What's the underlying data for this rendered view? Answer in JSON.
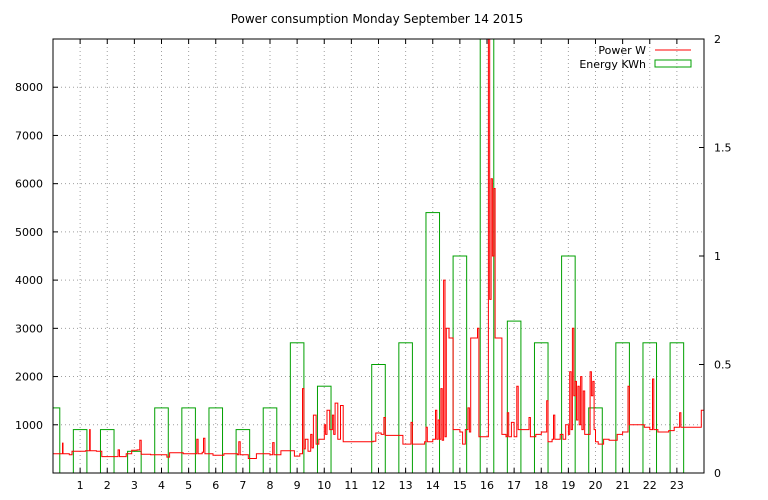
{
  "chart_data": {
    "type": "bar",
    "title": "Power consumption Monday September 14 2015",
    "x_ticks": [
      "1",
      "2",
      "3",
      "4",
      "5",
      "6",
      "7",
      "8",
      "9",
      "10",
      "11",
      "12",
      "13",
      "14",
      "15",
      "16",
      "17",
      "18",
      "19",
      "20",
      "21",
      "22",
      "23"
    ],
    "xlim": [
      0,
      24
    ],
    "y_left": {
      "ticks": [
        "1000",
        "2000",
        "3000",
        "4000",
        "5000",
        "6000",
        "7000",
        "8000"
      ],
      "lim": [
        0,
        9000
      ]
    },
    "y_right": {
      "ticks": [
        "0",
        "0.5",
        "1",
        "1.5",
        "2"
      ],
      "lim": [
        0,
        2
      ]
    },
    "grid": true,
    "legend_position": "top-right",
    "colors": {
      "power": "#ff0000",
      "energy": "#00a000"
    },
    "series": [
      {
        "name": "Power W",
        "axis": "left",
        "style": "line",
        "points": [
          [
            0.0,
            400
          ],
          [
            0.3,
            400
          ],
          [
            0.35,
            620
          ],
          [
            0.37,
            400
          ],
          [
            0.6,
            380
          ],
          [
            0.7,
            450
          ],
          [
            1.2,
            460
          ],
          [
            1.35,
            900
          ],
          [
            1.37,
            460
          ],
          [
            1.6,
            450
          ],
          [
            1.8,
            340
          ],
          [
            2.3,
            340
          ],
          [
            2.4,
            480
          ],
          [
            2.45,
            340
          ],
          [
            2.7,
            400
          ],
          [
            2.9,
            470
          ],
          [
            3.1,
            480
          ],
          [
            3.2,
            680
          ],
          [
            3.25,
            390
          ],
          [
            3.6,
            380
          ],
          [
            4.0,
            380
          ],
          [
            4.2,
            330
          ],
          [
            4.3,
            420
          ],
          [
            4.5,
            420
          ],
          [
            4.8,
            400
          ],
          [
            5.2,
            400
          ],
          [
            5.3,
            700
          ],
          [
            5.35,
            400
          ],
          [
            5.5,
            430
          ],
          [
            5.55,
            720
          ],
          [
            5.6,
            400
          ],
          [
            5.9,
            370
          ],
          [
            6.1,
            370
          ],
          [
            6.3,
            400
          ],
          [
            6.6,
            400
          ],
          [
            6.8,
            380
          ],
          [
            6.85,
            650
          ],
          [
            6.9,
            380
          ],
          [
            7.2,
            300
          ],
          [
            7.5,
            400
          ],
          [
            7.8,
            400
          ],
          [
            8.0,
            380
          ],
          [
            8.1,
            630
          ],
          [
            8.15,
            380
          ],
          [
            8.4,
            460
          ],
          [
            8.8,
            460
          ],
          [
            8.9,
            350
          ],
          [
            9.1,
            400
          ],
          [
            9.2,
            1750
          ],
          [
            9.25,
            500
          ],
          [
            9.3,
            700
          ],
          [
            9.4,
            450
          ],
          [
            9.5,
            800
          ],
          [
            9.55,
            520
          ],
          [
            9.6,
            1200
          ],
          [
            9.7,
            600
          ],
          [
            9.8,
            700
          ],
          [
            9.9,
            700
          ],
          [
            10.0,
            1000
          ],
          [
            10.05,
            800
          ],
          [
            10.1,
            1300
          ],
          [
            10.2,
            900
          ],
          [
            10.3,
            1200
          ],
          [
            10.35,
            800
          ],
          [
            10.4,
            1450
          ],
          [
            10.5,
            700
          ],
          [
            10.6,
            1400
          ],
          [
            10.7,
            650
          ],
          [
            11.0,
            650
          ],
          [
            11.5,
            650
          ],
          [
            11.8,
            660
          ],
          [
            11.9,
            830
          ],
          [
            12.1,
            800
          ],
          [
            12.2,
            1150
          ],
          [
            12.25,
            780
          ],
          [
            12.8,
            780
          ],
          [
            12.9,
            600
          ],
          [
            13.0,
            600
          ],
          [
            13.2,
            1050
          ],
          [
            13.25,
            600
          ],
          [
            13.5,
            600
          ],
          [
            13.7,
            650
          ],
          [
            13.75,
            950
          ],
          [
            13.8,
            650
          ],
          [
            14.0,
            700
          ],
          [
            14.1,
            1300
          ],
          [
            14.15,
            700
          ],
          [
            14.2,
            1100
          ],
          [
            14.25,
            700
          ],
          [
            14.3,
            1750
          ],
          [
            14.35,
            680
          ],
          [
            14.4,
            4000
          ],
          [
            14.45,
            750
          ],
          [
            14.5,
            3000
          ],
          [
            14.6,
            2800
          ],
          [
            14.7,
            2800
          ],
          [
            14.75,
            900
          ],
          [
            15.0,
            850
          ],
          [
            15.1,
            600
          ],
          [
            15.2,
            900
          ],
          [
            15.3,
            1350
          ],
          [
            15.35,
            850
          ],
          [
            15.4,
            2800
          ],
          [
            15.6,
            2800
          ],
          [
            15.65,
            3000
          ],
          [
            15.7,
            750
          ],
          [
            16.0,
            750
          ],
          [
            16.05,
            9000
          ],
          [
            16.1,
            3600
          ],
          [
            16.15,
            6100
          ],
          [
            16.2,
            4500
          ],
          [
            16.25,
            5900
          ],
          [
            16.3,
            2800
          ],
          [
            16.5,
            2800
          ],
          [
            16.55,
            800
          ],
          [
            16.7,
            750
          ],
          [
            16.75,
            1250
          ],
          [
            16.8,
            750
          ],
          [
            16.9,
            1050
          ],
          [
            17.0,
            750
          ],
          [
            17.1,
            1800
          ],
          [
            17.15,
            900
          ],
          [
            17.5,
            900
          ],
          [
            17.55,
            1150
          ],
          [
            17.6,
            750
          ],
          [
            17.8,
            800
          ],
          [
            18.0,
            850
          ],
          [
            18.2,
            1500
          ],
          [
            18.25,
            650
          ],
          [
            18.4,
            700
          ],
          [
            18.45,
            1200
          ],
          [
            18.5,
            700
          ],
          [
            18.7,
            800
          ],
          [
            18.8,
            700
          ],
          [
            18.9,
            1000
          ],
          [
            19.0,
            800
          ],
          [
            19.05,
            2100
          ],
          [
            19.1,
            900
          ],
          [
            19.15,
            3000
          ],
          [
            19.2,
            1600
          ],
          [
            19.25,
            1900
          ],
          [
            19.3,
            1100
          ],
          [
            19.35,
            1800
          ],
          [
            19.4,
            1000
          ],
          [
            19.45,
            2000
          ],
          [
            19.5,
            900
          ],
          [
            19.55,
            1700
          ],
          [
            19.6,
            800
          ],
          [
            19.75,
            800
          ],
          [
            19.8,
            2100
          ],
          [
            19.85,
            1600
          ],
          [
            19.9,
            1900
          ],
          [
            19.95,
            900
          ],
          [
            20.0,
            650
          ],
          [
            20.1,
            600
          ],
          [
            20.3,
            700
          ],
          [
            20.5,
            680
          ],
          [
            20.8,
            800
          ],
          [
            21.0,
            850
          ],
          [
            21.2,
            1800
          ],
          [
            21.25,
            1000
          ],
          [
            21.5,
            1000
          ],
          [
            21.8,
            950
          ],
          [
            22.0,
            900
          ],
          [
            22.1,
            1950
          ],
          [
            22.15,
            900
          ],
          [
            22.3,
            850
          ],
          [
            22.6,
            850
          ],
          [
            22.7,
            880
          ],
          [
            22.9,
            950
          ],
          [
            23.0,
            950
          ],
          [
            23.1,
            1250
          ],
          [
            23.15,
            950
          ],
          [
            23.5,
            950
          ],
          [
            23.8,
            950
          ],
          [
            23.9,
            1300
          ],
          [
            24.0,
            1050
          ]
        ]
      },
      {
        "name": "Energy KWh",
        "axis": "right",
        "style": "boxes",
        "box_width": 0.5,
        "points": [
          [
            0,
            0.3
          ],
          [
            1,
            0.2
          ],
          [
            2,
            0.2
          ],
          [
            3,
            0.1
          ],
          [
            4,
            0.3
          ],
          [
            5,
            0.3
          ],
          [
            6,
            0.3
          ],
          [
            7,
            0.2
          ],
          [
            8,
            0.3
          ],
          [
            9,
            0.6
          ],
          [
            10,
            0.4
          ],
          [
            11,
            0.0
          ],
          [
            12,
            0.5
          ],
          [
            13,
            0.6
          ],
          [
            14,
            1.2
          ],
          [
            15,
            1.0
          ],
          [
            16,
            2.0
          ],
          [
            17,
            0.7
          ],
          [
            18,
            0.6
          ],
          [
            19,
            1.0
          ],
          [
            20,
            0.3
          ],
          [
            21,
            0.6
          ],
          [
            22,
            0.6
          ],
          [
            23,
            0.6
          ]
        ]
      }
    ]
  }
}
